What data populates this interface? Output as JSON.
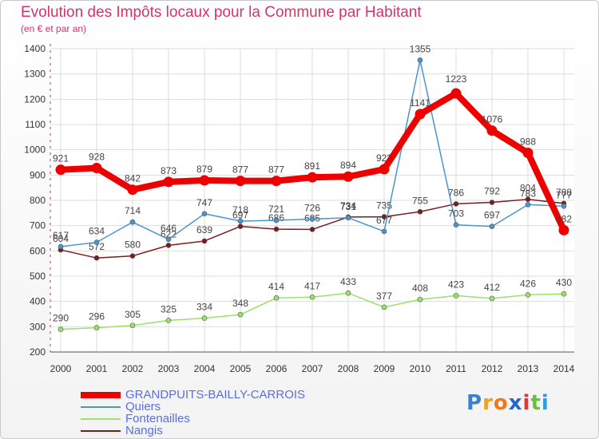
{
  "colors": {
    "title": "#d6336c",
    "legend_text": "#5b6ee1",
    "grid": "#dddddd",
    "axis": "#555555"
  },
  "chart_data": {
    "type": "line",
    "title": "Evolution des Impôts locaux pour la Commune par Habitant",
    "subtitle": "(en € et par an)",
    "xlabel": "",
    "ylabel": "",
    "ylim": [
      200,
      1400
    ],
    "yticks": [
      200,
      300,
      400,
      500,
      600,
      700,
      800,
      900,
      1000,
      1100,
      1200,
      1300,
      1400
    ],
    "categories": [
      "2000",
      "2001",
      "2002",
      "2003",
      "2004",
      "2005",
      "2006",
      "2007",
      "2008",
      "2009",
      "2010",
      "2011",
      "2012",
      "2013",
      "2014"
    ],
    "grid": true,
    "legend_position": "bottom-left",
    "series": [
      {
        "name": "Nangis",
        "color": "#7a1c1c",
        "values": [
          604,
          572,
          580,
          622,
          639,
          697,
          686,
          685,
          734,
          735,
          755,
          786,
          792,
          804,
          788
        ]
      },
      {
        "name": "Fontenailles",
        "color": "#9ae26a",
        "values": [
          290,
          296,
          305,
          325,
          334,
          348,
          414,
          417,
          433,
          377,
          408,
          423,
          412,
          426,
          430
        ]
      },
      {
        "name": "Quiers",
        "color": "#4a94cf",
        "values": [
          617,
          634,
          714,
          646,
          747,
          718,
          721,
          726,
          731,
          677,
          1355,
          703,
          697,
          783,
          777
        ]
      },
      {
        "name": "GRANDPUITS-BAILLY-CARROIS",
        "color": "#ee0000",
        "values": [
          921,
          928,
          842,
          873,
          879,
          877,
          877,
          891,
          894,
          923,
          1141,
          1223,
          1076,
          988,
          682
        ]
      }
    ]
  },
  "legend": {
    "items": [
      {
        "label": "GRANDPUITS-BAILLY-CARROIS",
        "color": "#ee0000"
      },
      {
        "label": "Quiers",
        "color": "#4a94cf"
      },
      {
        "label": "Fontenailles",
        "color": "#9ae26a"
      },
      {
        "label": "Nangis",
        "color": "#7a1c1c"
      }
    ]
  },
  "logo": {
    "letters": [
      "P",
      "r",
      "o",
      "x",
      "i",
      "t",
      "i"
    ],
    "colors": [
      "#3a7fd0",
      "#f0a020",
      "#f07818",
      "#2a66c8",
      "#e63535",
      "#6cbf3a",
      "#2a9ee0"
    ]
  }
}
